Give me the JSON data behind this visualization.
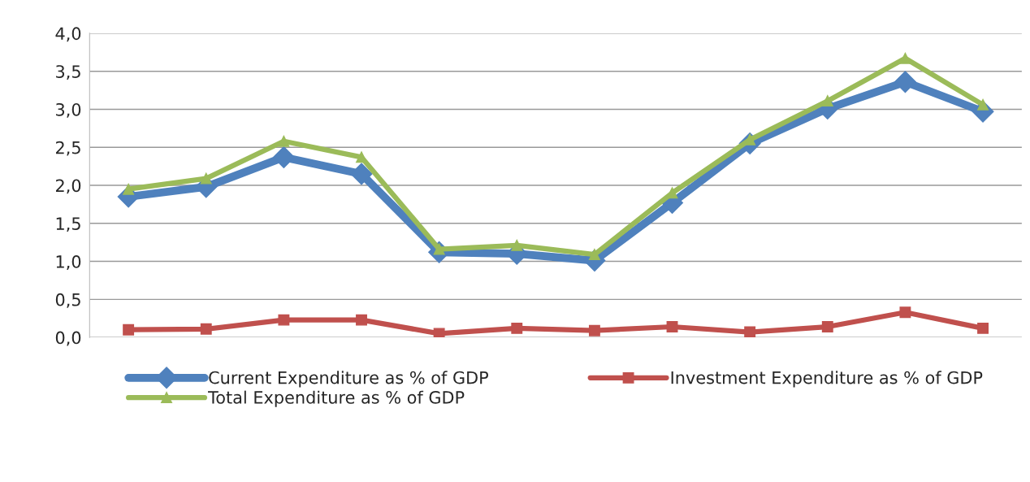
{
  "chart_data": {
    "type": "line",
    "categories": [
      null,
      null,
      null,
      null,
      null,
      null,
      null,
      null,
      null,
      null,
      null,
      null
    ],
    "series": [
      {
        "name": "Current Expenditure as % of GDP",
        "color": "#4f81bd",
        "marker": "diamond",
        "values": [
          1.85,
          1.98,
          2.37,
          2.15,
          1.12,
          1.1,
          1.01,
          1.77,
          2.55,
          3.01,
          3.36,
          2.97
        ]
      },
      {
        "name": "Total Expenditure as % of GDP",
        "color": "#9bbb59",
        "marker": "triangle",
        "values": [
          1.95,
          2.09,
          2.58,
          2.37,
          1.16,
          1.21,
          1.09,
          1.9,
          2.6,
          3.11,
          3.67,
          3.06
        ]
      },
      {
        "name": "Investment Expenditure as % of GDP",
        "color": "#c0504d",
        "marker": "square",
        "values": [
          0.1,
          0.11,
          0.23,
          0.23,
          0.05,
          0.12,
          0.09,
          0.14,
          0.07,
          0.14,
          0.33,
          0.12
        ]
      }
    ],
    "ylim": [
      0,
      4
    ],
    "yticks": [
      {
        "value": 0,
        "label": "0,0"
      },
      {
        "value": 0.5,
        "label": "0,5"
      },
      {
        "value": 1,
        "label": "1,0"
      },
      {
        "value": 1.5,
        "label": "1,5"
      },
      {
        "value": 2,
        "label": "2,0"
      },
      {
        "value": 2.5,
        "label": "2,5"
      },
      {
        "value": 3,
        "label": "3,0"
      },
      {
        "value": 3.5,
        "label": "3,5"
      },
      {
        "value": 4,
        "label": "4,0"
      }
    ],
    "grid": "y",
    "legend": "bottom",
    "line_style": "solid"
  }
}
